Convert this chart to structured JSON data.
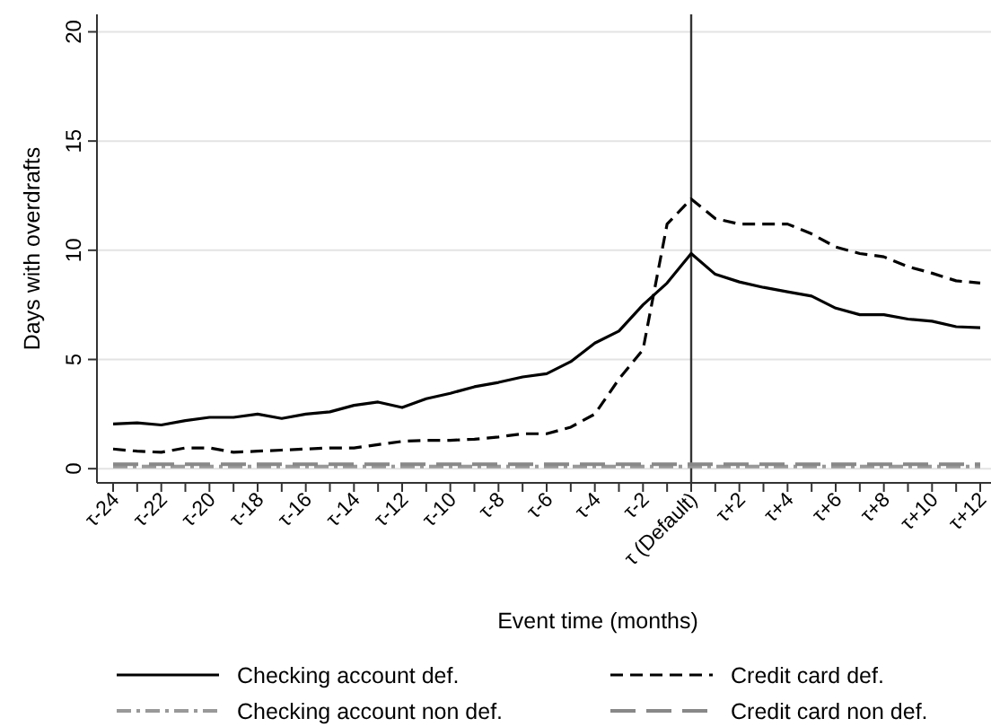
{
  "chart_data": {
    "type": "line",
    "xlabel": "Event time (months)",
    "ylabel": "Days with overdrafts",
    "categories": [
      "τ-24",
      null,
      "τ-22",
      null,
      "τ-20",
      null,
      "τ-18",
      null,
      "τ-16",
      null,
      "τ-14",
      null,
      "τ-12",
      null,
      "τ-10",
      null,
      "τ-8",
      null,
      "τ-6",
      null,
      "τ-4",
      null,
      "τ-2",
      null,
      "τ (Default)",
      null,
      "τ+2",
      null,
      "τ+4",
      null,
      "τ+6",
      null,
      "τ+8",
      null,
      "τ+10",
      null,
      "τ+12"
    ],
    "series": [
      {
        "name": "Checking account def.",
        "color": "#000000",
        "line_style": "solid",
        "values": [
          2.05,
          2.1,
          2.0,
          2.2,
          2.35,
          2.35,
          2.5,
          2.3,
          2.5,
          2.6,
          2.9,
          3.05,
          2.8,
          3.2,
          3.45,
          3.75,
          3.95,
          4.2,
          4.35,
          4.9,
          5.75,
          6.3,
          7.5,
          8.5,
          9.85,
          8.9,
          8.55,
          8.3,
          8.1,
          7.9,
          7.35,
          7.05,
          7.05,
          6.85,
          6.75,
          6.5,
          6.45
        ]
      },
      {
        "name": "Credit card def.",
        "color": "#000000",
        "line_style": "dashed",
        "values": [
          0.9,
          0.8,
          0.75,
          0.95,
          0.95,
          0.75,
          0.8,
          0.85,
          0.9,
          0.95,
          0.95,
          1.1,
          1.25,
          1.3,
          1.3,
          1.35,
          1.45,
          1.6,
          1.6,
          1.9,
          2.5,
          4.1,
          5.45,
          11.2,
          12.35,
          11.45,
          11.2,
          11.2,
          11.2,
          10.75,
          10.15,
          9.85,
          9.7,
          9.25,
          8.95,
          8.6,
          8.5
        ]
      },
      {
        "name": "Checking account non def.",
        "color": "#999999",
        "line_style": "dashdot",
        "values": [
          0.1,
          0.1,
          0.1,
          0.1,
          0.1,
          0.1,
          0.1,
          0.1,
          0.1,
          0.1,
          0.1,
          0.1,
          0.1,
          0.1,
          0.1,
          0.1,
          0.1,
          0.1,
          0.1,
          0.1,
          0.1,
          0.1,
          0.1,
          0.1,
          0.1,
          0.1,
          0.1,
          0.1,
          0.1,
          0.1,
          0.1,
          0.1,
          0.1,
          0.1,
          0.1,
          0.1,
          0.1
        ]
      },
      {
        "name": "Credit card non def.",
        "color": "#888888",
        "line_style": "longdash",
        "values": [
          0.2,
          0.2,
          0.2,
          0.2,
          0.2,
          0.2,
          0.2,
          0.2,
          0.2,
          0.2,
          0.2,
          0.2,
          0.2,
          0.2,
          0.2,
          0.2,
          0.2,
          0.2,
          0.2,
          0.2,
          0.2,
          0.2,
          0.2,
          0.2,
          0.2,
          0.2,
          0.2,
          0.2,
          0.2,
          0.2,
          0.2,
          0.2,
          0.2,
          0.2,
          0.2,
          0.2,
          0.2
        ]
      }
    ],
    "ylim": [
      -0.65,
      20.8
    ],
    "yticks": [
      0,
      5,
      10,
      15,
      20
    ],
    "grid": "y",
    "legend": "bottom",
    "ref_lines": [
      {
        "axis": "x",
        "value": "τ (Default)",
        "color": "#333333"
      }
    ]
  }
}
